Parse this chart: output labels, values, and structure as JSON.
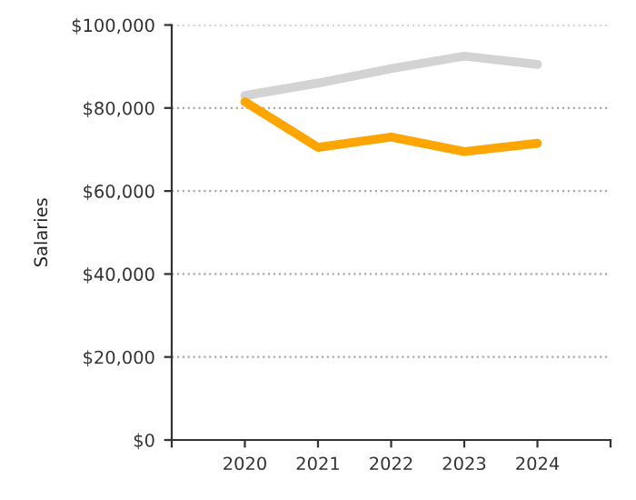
{
  "chart_data": {
    "type": "line",
    "ylabel": "Salaries",
    "x": [
      2020,
      2021,
      2022,
      2023,
      2024
    ],
    "series": [
      {
        "color": "#d3d3d3",
        "values": [
          83000,
          86000,
          89500,
          92500,
          90500
        ]
      },
      {
        "color": "#ffa500",
        "values": [
          81500,
          70500,
          73000,
          69500,
          71500
        ]
      }
    ],
    "xlim": [
      2019,
      2025
    ],
    "xticks": [
      {
        "value": 2019,
        "label": null
      },
      2020,
      2021,
      2022,
      2023,
      2024,
      {
        "value": 2025,
        "label": null
      }
    ],
    "ylim": [
      0,
      100000
    ],
    "yticks": [
      {
        "value": 0,
        "label": "$0"
      },
      {
        "value": 20000,
        "label": "$20,000"
      },
      {
        "value": 40000,
        "label": "$40,000"
      },
      {
        "value": 60000,
        "label": "$60,000"
      },
      {
        "value": 80000,
        "label": "$80,000"
      },
      {
        "value": 100000,
        "label": "$100,000"
      }
    ],
    "grid": "y",
    "line_style": "solid",
    "marker": "none"
  }
}
